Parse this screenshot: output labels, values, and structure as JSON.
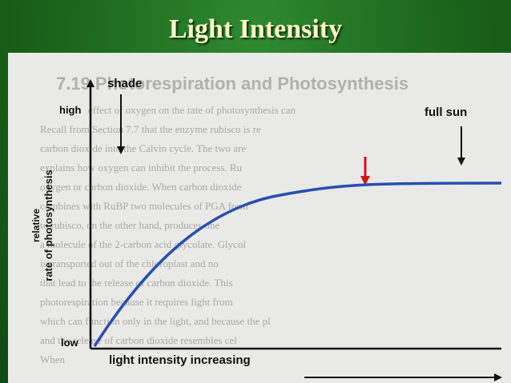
{
  "slide": {
    "title": "Light Intensity"
  },
  "diagram": {
    "labels": {
      "shade": "shade",
      "full_sun": "full sun",
      "high": "high",
      "low": "low",
      "y_axis_line1": "relative",
      "y_axis_line2": "rate of photosynthesis",
      "x_axis": "light intensity increasing"
    },
    "background_text": {
      "heading": "7.19 Photorespiration and Photosynthesis",
      "lines": [
        "effect of oxygen on the rate of photosynthesis can",
        "Recall from Section 7.7 that the enzyme rubisco is re",
        "carbon dioxide into the Calvin cycle. The two are",
        "explains how oxygen can inhibit the process. Ru",
        "oxygen or carbon dioxide. When carbon dioxide",
        "combines with RuBP two molecules of PGA form",
        "to rubisco, on the other hand, produces one",
        "a molecule of the 2-carbon acid glycolate. Glycol",
        "is transported out of the chloroplast and no",
        "that lead to the release of carbon dioxide. This",
        "photorespiration because it requires light from",
        "which can function only in the light, and because the pl",
        "and the release of carbon dioxide resembles cel",
        "When"
      ]
    },
    "colors": {
      "curve": "#2a4fb0",
      "highlight_arrow": "#d01818",
      "slide_background": "#1f6b1f",
      "title_text": "#fff8c8"
    }
  }
}
